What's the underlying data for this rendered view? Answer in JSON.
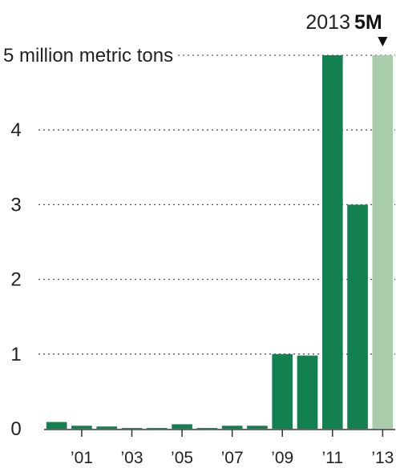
{
  "chart_data": {
    "type": "bar",
    "categories": [
      "2000",
      "2001",
      "2002",
      "2003",
      "2004",
      "2005",
      "2006",
      "2007",
      "2008",
      "2009",
      "2010",
      "2011",
      "2012",
      "2013"
    ],
    "values": [
      0.09,
      0.04,
      0.03,
      0.01,
      0.01,
      0.06,
      0.01,
      0.04,
      0.04,
      1.0,
      0.98,
      5.0,
      3.0,
      5.0
    ],
    "highlight_index": 13,
    "ylim": [
      0,
      5
    ],
    "yticks": [
      {
        "value": 0,
        "label": "0"
      },
      {
        "value": 1,
        "label": "1"
      },
      {
        "value": 2,
        "label": "2"
      },
      {
        "value": 3,
        "label": "3"
      },
      {
        "value": 4,
        "label": "4"
      },
      {
        "value": 5,
        "label": "5 million metric tons"
      }
    ],
    "xticks": [
      {
        "category": "2001",
        "label": "’01"
      },
      {
        "category": "2003",
        "label": "’03"
      },
      {
        "category": "2005",
        "label": "’05"
      },
      {
        "category": "2007",
        "label": "’07"
      },
      {
        "category": "2009",
        "label": "’09"
      },
      {
        "category": "2011",
        "label": "’11"
      },
      {
        "category": "2013",
        "label": "’13"
      }
    ],
    "annotation": {
      "year": "2013",
      "value": "5M"
    },
    "grid": true,
    "colors": {
      "bar": "#13804f",
      "highlight": "#a9ccaa",
      "grid": "#555555",
      "text": "#222222"
    }
  }
}
